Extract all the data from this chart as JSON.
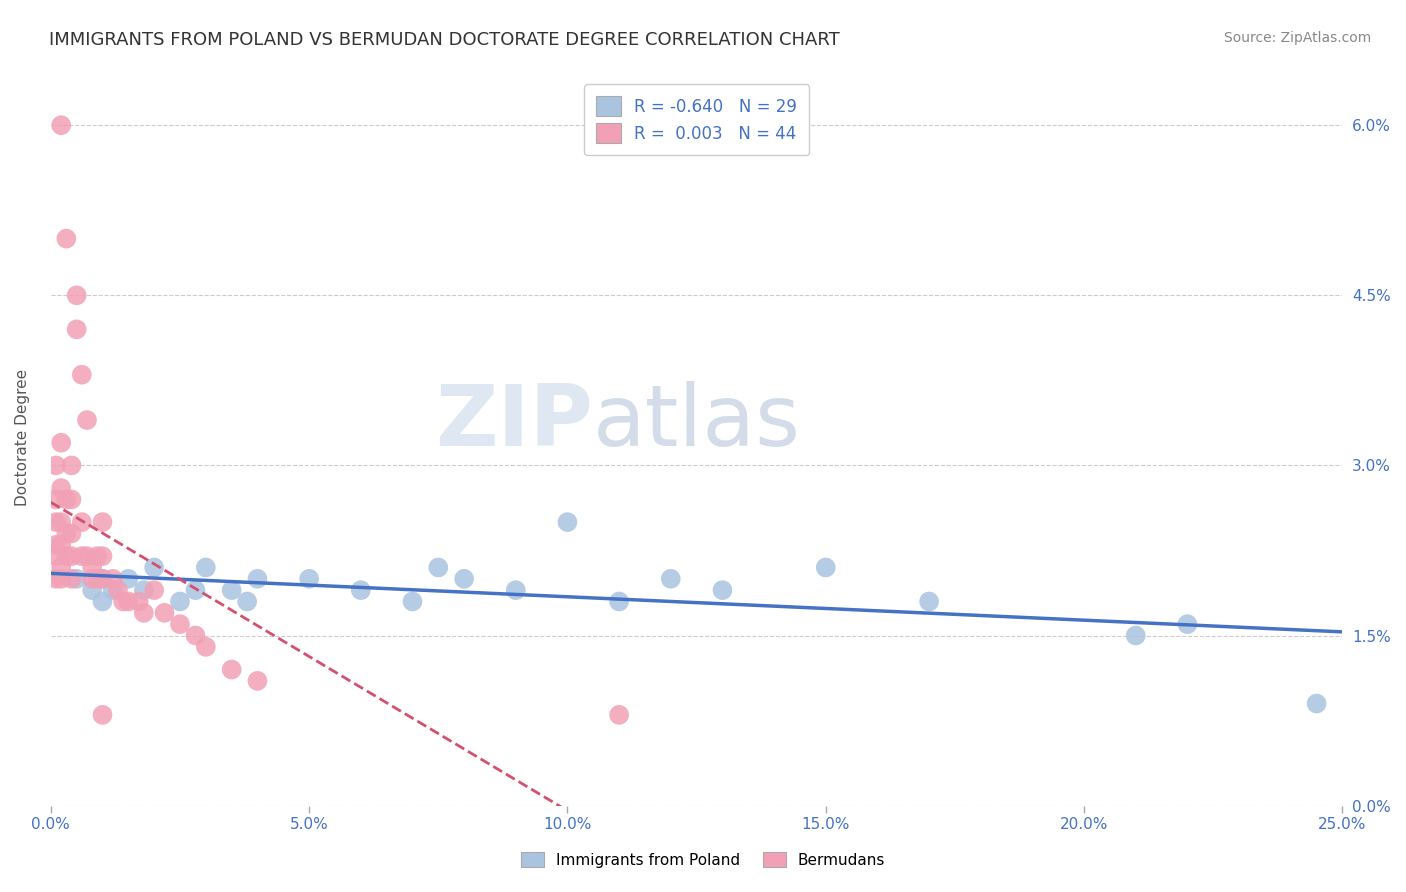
{
  "title": "IMMIGRANTS FROM POLAND VS BERMUDAN DOCTORATE DEGREE CORRELATION CHART",
  "source": "Source: ZipAtlas.com",
  "xlabel_blue": "Immigrants from Poland",
  "xlabel_pink": "Bermudans",
  "ylabel": "Doctorate Degree",
  "xlim": [
    0.0,
    0.25
  ],
  "ylim": [
    0.0,
    0.065
  ],
  "xticks": [
    0.0,
    0.05,
    0.1,
    0.15,
    0.2,
    0.25
  ],
  "xticklabels": [
    "0.0%",
    "5.0%",
    "10.0%",
    "15.0%",
    "20.0%",
    "25.0%"
  ],
  "yticks_right": [
    0.0,
    0.015,
    0.03,
    0.045,
    0.06
  ],
  "yticklabels_right": [
    "0.0%",
    "1.5%",
    "3.0%",
    "4.5%",
    "6.0%"
  ],
  "legend_r_blue": "-0.640",
  "legend_n_blue": "29",
  "legend_r_pink": "0.003",
  "legend_n_pink": "44",
  "blue_color": "#aac4e0",
  "pink_color": "#f2a0b5",
  "blue_line_color": "#4472C4",
  "pink_line_color": "#d45070",
  "watermark_zip": "ZIP",
  "watermark_atlas": "atlas",
  "blue_scatter_x": [
    0.005,
    0.008,
    0.01,
    0.01,
    0.012,
    0.015,
    0.018,
    0.02,
    0.025,
    0.028,
    0.03,
    0.035,
    0.038,
    0.04,
    0.05,
    0.06,
    0.07,
    0.075,
    0.08,
    0.09,
    0.1,
    0.11,
    0.12,
    0.13,
    0.15,
    0.17,
    0.21,
    0.22,
    0.245
  ],
  "blue_scatter_y": [
    0.02,
    0.019,
    0.02,
    0.018,
    0.019,
    0.02,
    0.019,
    0.021,
    0.018,
    0.019,
    0.021,
    0.019,
    0.018,
    0.02,
    0.02,
    0.019,
    0.018,
    0.021,
    0.02,
    0.019,
    0.025,
    0.018,
    0.02,
    0.019,
    0.021,
    0.018,
    0.015,
    0.016,
    0.009
  ],
  "pink_scatter_x": [
    0.001,
    0.001,
    0.001,
    0.001,
    0.001,
    0.001,
    0.002,
    0.002,
    0.002,
    0.002,
    0.002,
    0.002,
    0.003,
    0.003,
    0.003,
    0.004,
    0.004,
    0.004,
    0.004,
    0.004,
    0.006,
    0.006,
    0.007,
    0.008,
    0.008,
    0.009,
    0.009,
    0.01,
    0.01,
    0.01,
    0.012,
    0.013,
    0.014,
    0.015,
    0.017,
    0.018,
    0.02,
    0.022,
    0.025,
    0.028,
    0.03,
    0.035,
    0.04,
    0.11
  ],
  "pink_scatter_y": [
    0.03,
    0.027,
    0.025,
    0.023,
    0.022,
    0.02,
    0.032,
    0.028,
    0.025,
    0.023,
    0.021,
    0.02,
    0.027,
    0.024,
    0.022,
    0.03,
    0.027,
    0.024,
    0.022,
    0.02,
    0.025,
    0.022,
    0.022,
    0.021,
    0.02,
    0.022,
    0.02,
    0.025,
    0.022,
    0.02,
    0.02,
    0.019,
    0.018,
    0.018,
    0.018,
    0.017,
    0.019,
    0.017,
    0.016,
    0.015,
    0.014,
    0.012,
    0.011,
    0.008
  ],
  "pink_outlier_x": [
    0.002,
    0.003,
    0.005,
    0.005,
    0.006,
    0.007,
    0.01
  ],
  "pink_outlier_y": [
    0.06,
    0.05,
    0.045,
    0.042,
    0.038,
    0.034,
    0.008
  ],
  "title_fontsize": 13,
  "axis_label_fontsize": 11,
  "tick_fontsize": 11,
  "legend_fontsize": 12,
  "source_fontsize": 10
}
